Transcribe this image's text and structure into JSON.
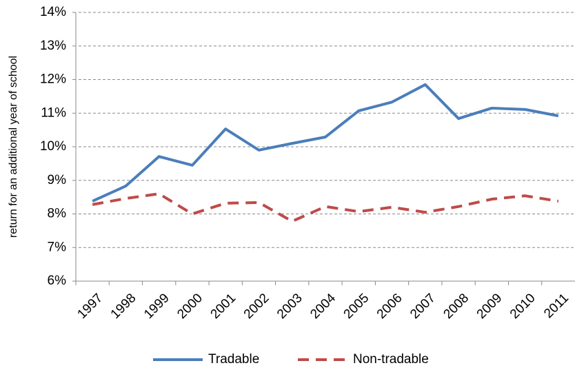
{
  "chart_data": {
    "type": "line",
    "y_label": "return for an additional year of school",
    "categories": [
      "1997",
      "1998",
      "1999",
      "2000",
      "2001",
      "2002",
      "2003",
      "2004",
      "2005",
      "2006",
      "2007",
      "2008",
      "2009",
      "2010",
      "2011"
    ],
    "series": [
      {
        "name": "Tradable",
        "color": "#4a7ebb",
        "dash": "solid",
        "values": [
          8.38,
          8.83,
          9.71,
          9.45,
          10.53,
          9.9,
          10.1,
          10.29,
          11.07,
          11.33,
          11.85,
          10.84,
          11.15,
          11.11,
          10.92
        ]
      },
      {
        "name": "Non-tradable",
        "color": "#be4b48",
        "dash": "dashed",
        "values": [
          8.28,
          8.46,
          8.6,
          8.0,
          8.32,
          8.34,
          7.78,
          8.22,
          8.07,
          8.2,
          8.05,
          8.22,
          8.44,
          8.54,
          8.38
        ]
      }
    ],
    "ylim": [
      6,
      14
    ],
    "yticks": [
      {
        "value": 6,
        "label": "6%"
      },
      {
        "value": 7,
        "label": "7%"
      },
      {
        "value": 8,
        "label": "8%"
      },
      {
        "value": 9,
        "label": "9%"
      },
      {
        "value": 10,
        "label": "10%"
      },
      {
        "value": 11,
        "label": "11%"
      },
      {
        "value": 12,
        "label": "12%"
      },
      {
        "value": 13,
        "label": "13%"
      },
      {
        "value": 14,
        "label": "14%"
      }
    ],
    "grid": true,
    "legend": "bottom"
  }
}
